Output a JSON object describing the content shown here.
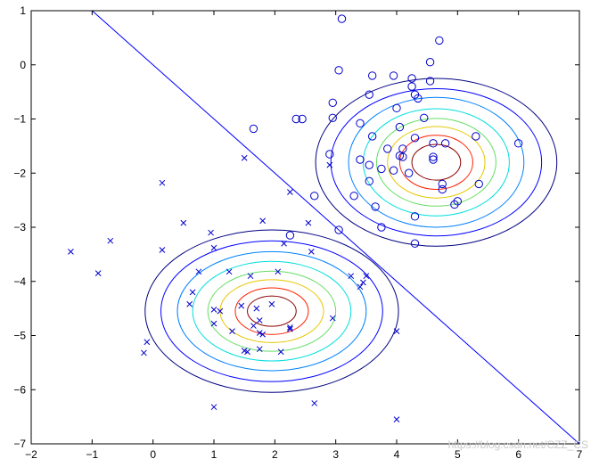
{
  "chart_data": {
    "type": "scatter",
    "title": "",
    "xlabel": "",
    "ylabel": "",
    "xlim": [
      -2,
      7
    ],
    "ylim": [
      -7,
      1
    ],
    "x_ticks": [
      -2,
      -1,
      0,
      1,
      2,
      3,
      4,
      5,
      6,
      7
    ],
    "y_ticks": [
      1,
      0,
      -1,
      -2,
      -3,
      -4,
      -5,
      -6,
      -7
    ],
    "x_tick_labels": [
      "−2",
      "−1",
      "0",
      "1",
      "2",
      "3",
      "4",
      "5",
      "6",
      "7"
    ],
    "y_tick_labels": [
      "1",
      "0",
      "−1",
      "−2",
      "−3",
      "−4",
      "−5",
      "−6",
      "−7"
    ],
    "grid": false,
    "legend": "none",
    "marker_color": "#0000cc",
    "series": [
      {
        "marker": "circle",
        "points": [
          [
            3.1,
            0.85
          ],
          [
            4.7,
            0.45
          ],
          [
            4.55,
            0.05
          ],
          [
            3.05,
            -0.1
          ],
          [
            3.6,
            -0.2
          ],
          [
            3.95,
            -0.2
          ],
          [
            4.25,
            -0.4
          ],
          [
            4.3,
            -0.55
          ],
          [
            4.55,
            -0.3
          ],
          [
            4.25,
            -0.25
          ],
          [
            3.55,
            -0.55
          ],
          [
            4.35,
            -0.62
          ],
          [
            2.95,
            -0.7
          ],
          [
            4.0,
            -0.8
          ],
          [
            2.35,
            -1.0
          ],
          [
            2.45,
            -1.0
          ],
          [
            2.95,
            -0.98
          ],
          [
            4.45,
            -0.98
          ],
          [
            1.65,
            -1.18
          ],
          [
            3.4,
            -1.08
          ],
          [
            4.05,
            -1.15
          ],
          [
            3.6,
            -1.32
          ],
          [
            4.1,
            -1.55
          ],
          [
            4.3,
            -1.35
          ],
          [
            4.6,
            -1.45
          ],
          [
            4.6,
            -1.7
          ],
          [
            4.8,
            -1.45
          ],
          [
            5.3,
            -1.32
          ],
          [
            6.0,
            -1.45
          ],
          [
            2.9,
            -1.65
          ],
          [
            3.4,
            -1.75
          ],
          [
            3.85,
            -1.55
          ],
          [
            4.05,
            -1.68
          ],
          [
            4.1,
            -1.7
          ],
          [
            4.6,
            -1.75
          ],
          [
            3.55,
            -1.85
          ],
          [
            3.75,
            -1.92
          ],
          [
            3.95,
            -1.95
          ],
          [
            3.55,
            -2.15
          ],
          [
            4.2,
            -2.0
          ],
          [
            4.75,
            -2.2
          ],
          [
            4.75,
            -2.3
          ],
          [
            5.35,
            -2.2
          ],
          [
            3.3,
            -2.42
          ],
          [
            2.65,
            -2.42
          ],
          [
            3.65,
            -2.62
          ],
          [
            4.3,
            -2.8
          ],
          [
            4.95,
            -2.58
          ],
          [
            5.0,
            -2.52
          ],
          [
            3.75,
            -3.0
          ],
          [
            3.05,
            -3.05
          ],
          [
            2.25,
            -3.15
          ],
          [
            4.3,
            -3.3
          ]
        ]
      },
      {
        "marker": "x",
        "points": [
          [
            1.5,
            -1.72
          ],
          [
            2.9,
            -1.85
          ],
          [
            0.15,
            -2.18
          ],
          [
            2.25,
            -2.35
          ],
          [
            0.5,
            -2.92
          ],
          [
            1.8,
            -2.88
          ],
          [
            2.55,
            -2.92
          ],
          [
            -0.7,
            -3.25
          ],
          [
            0.95,
            -3.1
          ],
          [
            2.15,
            -3.3
          ],
          [
            -1.35,
            -3.45
          ],
          [
            0.15,
            -3.42
          ],
          [
            1.0,
            -3.38
          ],
          [
            2.6,
            -3.45
          ],
          [
            -0.9,
            -3.85
          ],
          [
            0.75,
            -3.82
          ],
          [
            1.25,
            -3.82
          ],
          [
            1.6,
            -3.9
          ],
          [
            2.05,
            -3.82
          ],
          [
            3.25,
            -3.9
          ],
          [
            3.5,
            -3.9
          ],
          [
            3.45,
            -4.02
          ],
          [
            3.4,
            -4.1
          ],
          [
            0.65,
            -4.2
          ],
          [
            0.6,
            -4.42
          ],
          [
            1.0,
            -4.52
          ],
          [
            1.45,
            -4.45
          ],
          [
            1.7,
            -4.5
          ],
          [
            1.95,
            -4.42
          ],
          [
            1.1,
            -4.55
          ],
          [
            1.75,
            -4.72
          ],
          [
            2.95,
            -4.68
          ],
          [
            1.0,
            -4.78
          ],
          [
            1.65,
            -4.82
          ],
          [
            1.75,
            -4.95
          ],
          [
            2.25,
            -4.85
          ],
          [
            1.8,
            -4.98
          ],
          [
            1.3,
            -4.92
          ],
          [
            2.25,
            -4.88
          ],
          [
            4.0,
            -4.92
          ],
          [
            -0.1,
            -5.12
          ],
          [
            -0.15,
            -5.32
          ],
          [
            1.5,
            -5.28
          ],
          [
            1.55,
            -5.3
          ],
          [
            1.75,
            -5.25
          ],
          [
            2.1,
            -5.3
          ],
          [
            1.0,
            -6.32
          ],
          [
            2.65,
            -6.25
          ],
          [
            4.0,
            -6.55
          ]
        ]
      }
    ],
    "contours": [
      {
        "center": [
          4.65,
          -1.8
        ],
        "radii": [
          [
            1.98,
            1.55
          ],
          [
            1.73,
            1.36
          ],
          [
            1.44,
            1.2
          ],
          [
            1.2,
            0.99
          ],
          [
            0.98,
            0.81
          ],
          [
            0.8,
            0.66
          ],
          [
            0.6,
            0.5
          ],
          [
            0.4,
            0.33
          ]
        ],
        "colors": [
          "#000080",
          "#0000ff",
          "#0080ff",
          "#00dddd",
          "#66dd66",
          "#e6c800",
          "#ff2000",
          "#8b0000"
        ]
      },
      {
        "center": [
          1.95,
          -4.55
        ],
        "radii": [
          [
            2.08,
            1.5
          ],
          [
            1.82,
            1.3
          ],
          [
            1.55,
            1.1
          ],
          [
            1.3,
            0.92
          ],
          [
            1.05,
            0.74
          ],
          [
            0.85,
            0.58
          ],
          [
            0.6,
            0.43
          ],
          [
            0.4,
            0.28
          ]
        ],
        "colors": [
          "#000080",
          "#0000ff",
          "#0080ff",
          "#00dddd",
          "#66dd66",
          "#e6c800",
          "#ff2000",
          "#8b0000"
        ]
      }
    ],
    "decision_boundary": {
      "from": [
        -1.0,
        1.0
      ],
      "to": [
        7.0,
        -7.0
      ],
      "color": "#0000ff"
    }
  },
  "watermark": "https://blog.csdn.net/CZZ_CS"
}
